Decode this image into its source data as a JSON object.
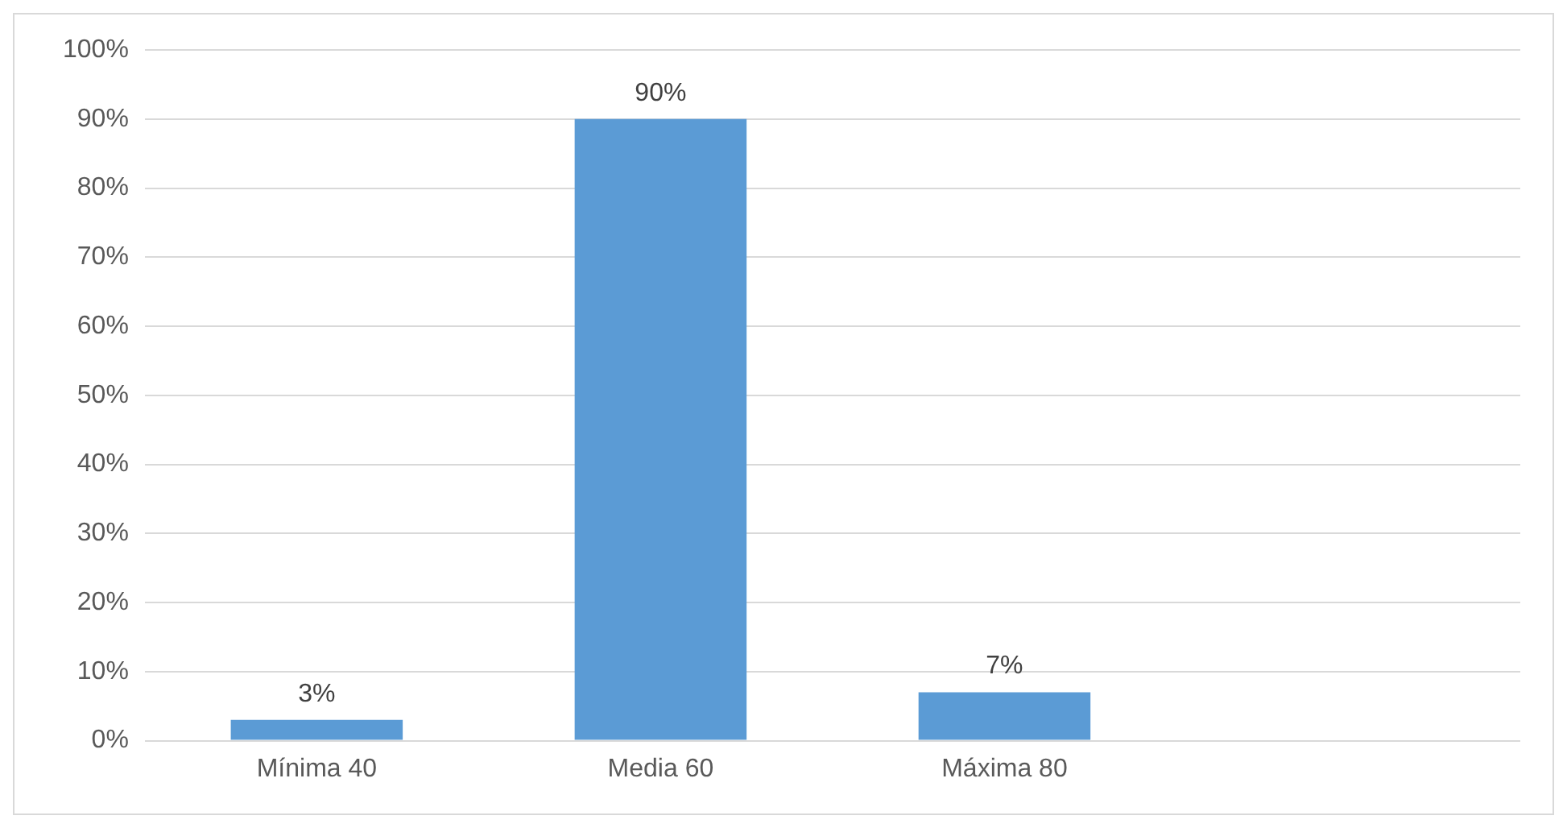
{
  "chart_data": {
    "type": "bar",
    "categories": [
      "Mínima 40",
      "Media 60",
      "Máxima 80",
      null
    ],
    "values": [
      3,
      90,
      7,
      null
    ],
    "value_labels": [
      "3%",
      "90%",
      "7%",
      null
    ],
    "color": "#5b9bd5",
    "ylim": [
      0,
      100
    ],
    "yticks": [
      {
        "value": 0,
        "label": "0%"
      },
      {
        "value": 10,
        "label": "10%"
      },
      {
        "value": 20,
        "label": "20%"
      },
      {
        "value": 30,
        "label": "30%"
      },
      {
        "value": 40,
        "label": "40%"
      },
      {
        "value": 50,
        "label": "50%"
      },
      {
        "value": 60,
        "label": "60%"
      },
      {
        "value": 70,
        "label": "70%"
      },
      {
        "value": 80,
        "label": "80%"
      },
      {
        "value": 90,
        "label": "90%"
      },
      {
        "value": 100,
        "label": "100%"
      }
    ],
    "grid": "y",
    "legend": false
  }
}
